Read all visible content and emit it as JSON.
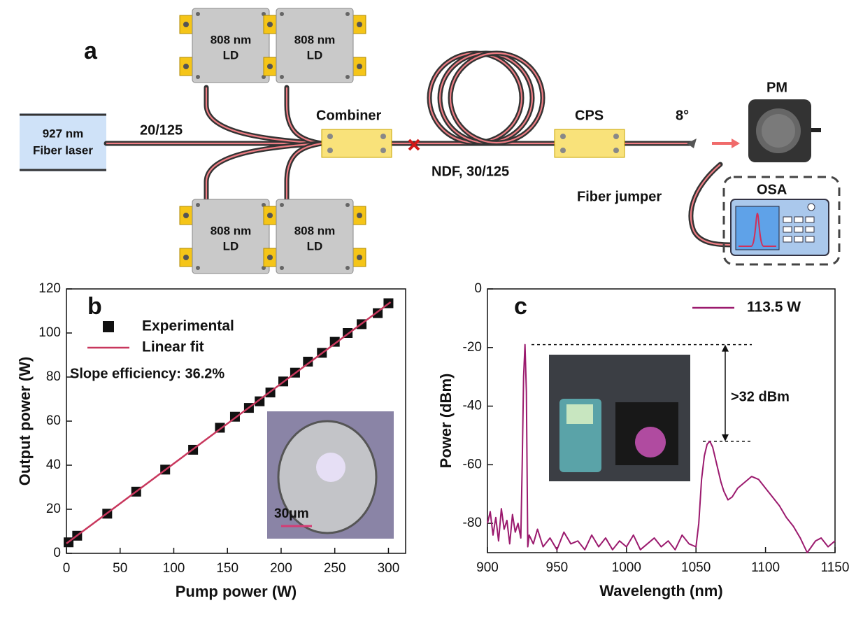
{
  "diagram": {
    "panel_label": "a",
    "laser": [
      "927 nm",
      "Fiber laser"
    ],
    "fiber_in": "20/125",
    "ld": [
      "808 nm",
      "LD"
    ],
    "combiner": "Combiner",
    "ndf": "NDF, 30/125",
    "cps": "CPS",
    "angle": "8°",
    "pm": "PM",
    "osa": "OSA",
    "jumper": "Fiber jumper"
  },
  "chart_data": [
    {
      "type": "scatter",
      "panel_label": "b",
      "xlabel": "Pump power (W)",
      "ylabel": "Output power (W)",
      "xlim": [
        0,
        316
      ],
      "ylim": [
        0,
        120
      ],
      "xticks": [
        0,
        50,
        100,
        150,
        200,
        250,
        300
      ],
      "yticks": [
        0,
        20,
        40,
        60,
        80,
        100,
        120
      ],
      "annotations": [
        "Slope efficiency: 36.2%",
        "30μm"
      ],
      "series": [
        {
          "name": "Experimental",
          "color": "#111111",
          "style": "markers",
          "x": [
            2,
            10,
            38,
            65,
            92,
            118,
            143,
            157,
            170,
            180,
            190,
            202,
            213,
            225,
            238,
            250,
            262,
            275,
            290,
            300
          ],
          "values": [
            5,
            8,
            18,
            28,
            38,
            47,
            57,
            62,
            66,
            69,
            73,
            78,
            82,
            87,
            91,
            96,
            100,
            104,
            109,
            113.5
          ]
        },
        {
          "name": "Linear fit",
          "color": "#c8375d",
          "style": "line",
          "x": [
            0,
            302
          ],
          "values": [
            4.5,
            114
          ]
        }
      ]
    },
    {
      "type": "line",
      "panel_label": "c",
      "xlabel": "Wavelength (nm)",
      "ylabel": "Power (dBm)",
      "xlim": [
        900,
        1150
      ],
      "ylim": [
        -90,
        0
      ],
      "xticks": [
        900,
        950,
        1000,
        1050,
        1100,
        1150
      ],
      "yticks": [
        -80,
        -60,
        -40,
        -20,
        0
      ],
      "annotations": [
        ">32 dBm"
      ],
      "hlines": [
        -19,
        -52
      ],
      "series": [
        {
          "name": "113.5 W",
          "color": "#9b1a6e",
          "style": "line",
          "x": [
            900,
            902,
            904,
            906,
            908,
            910,
            912,
            914,
            916,
            918,
            920,
            922,
            924,
            925,
            926,
            927,
            928,
            929,
            930,
            933,
            936,
            940,
            945,
            950,
            955,
            960,
            965,
            970,
            975,
            980,
            985,
            990,
            995,
            1000,
            1005,
            1010,
            1015,
            1020,
            1025,
            1030,
            1035,
            1040,
            1045,
            1050,
            1052,
            1054,
            1056,
            1058,
            1060,
            1062,
            1065,
            1068,
            1070,
            1073,
            1076,
            1080,
            1085,
            1090,
            1095,
            1100,
            1105,
            1110,
            1115,
            1120,
            1125,
            1128,
            1130,
            1133,
            1136,
            1140,
            1145,
            1150
          ],
          "values": [
            -80,
            -76,
            -84,
            -78,
            -86,
            -75,
            -82,
            -79,
            -87,
            -77,
            -83,
            -80,
            -85,
            -60,
            -30,
            -19,
            -35,
            -88,
            -84,
            -87,
            -82,
            -88,
            -85,
            -89,
            -83,
            -87,
            -86,
            -89,
            -84,
            -88,
            -85,
            -89,
            -86,
            -88,
            -84,
            -89,
            -87,
            -85,
            -88,
            -86,
            -89,
            -84,
            -87,
            -88,
            -80,
            -65,
            -57,
            -53,
            -52,
            -54,
            -60,
            -66,
            -69,
            -72,
            -71,
            -68,
            -66,
            -64,
            -65,
            -68,
            -71,
            -74,
            -78,
            -81,
            -85,
            -88,
            -90,
            -88,
            -86,
            -85,
            -88,
            -86
          ]
        }
      ]
    }
  ]
}
